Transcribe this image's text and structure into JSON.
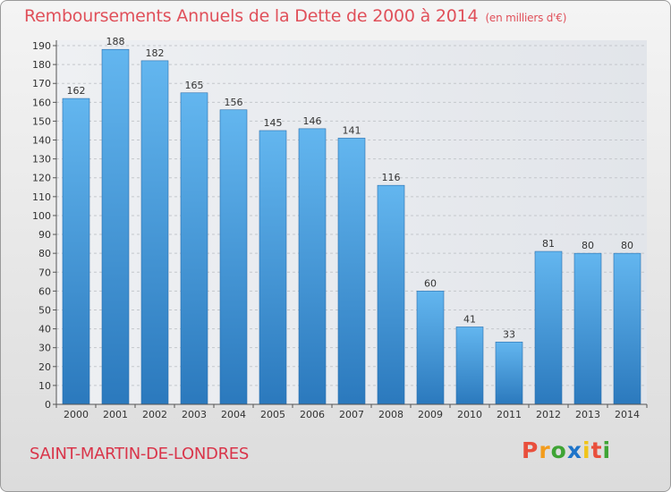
{
  "header": {
    "title": "Remboursements Annuels de la Dette de 2000 à 2014",
    "unit": "(en milliers d'€)"
  },
  "footer": {
    "place": "SAINT-MARTIN-DE-LONDRES",
    "logo": "Proxiti"
  },
  "colors": {
    "bar_top": "#63b6ef",
    "bar_bottom": "#2b79bd",
    "title": "#e0505a",
    "place": "#d9354a",
    "logo_letters": [
      "#e94f3c",
      "#f39c1c",
      "#3fa435",
      "#1e74c9",
      "#f0c419",
      "#e94f3c",
      "#3fa435"
    ]
  },
  "chart_data": {
    "type": "bar",
    "title": "Remboursements Annuels de la Dette de 2000 à 2014",
    "subtitle": "(en milliers d'€)",
    "xlabel": "",
    "ylabel": "",
    "categories": [
      "2000",
      "2001",
      "2002",
      "2003",
      "2004",
      "2005",
      "2006",
      "2007",
      "2008",
      "2009",
      "2010",
      "2011",
      "2012",
      "2013",
      "2014"
    ],
    "values": [
      162,
      188,
      182,
      165,
      156,
      145,
      146,
      141,
      116,
      60,
      41,
      33,
      81,
      80,
      80
    ],
    "ylim": [
      0,
      190
    ],
    "yticks": [
      0,
      10,
      20,
      30,
      40,
      50,
      60,
      70,
      80,
      90,
      100,
      110,
      120,
      130,
      140,
      150,
      160,
      170,
      180,
      190
    ],
    "grid": true
  }
}
